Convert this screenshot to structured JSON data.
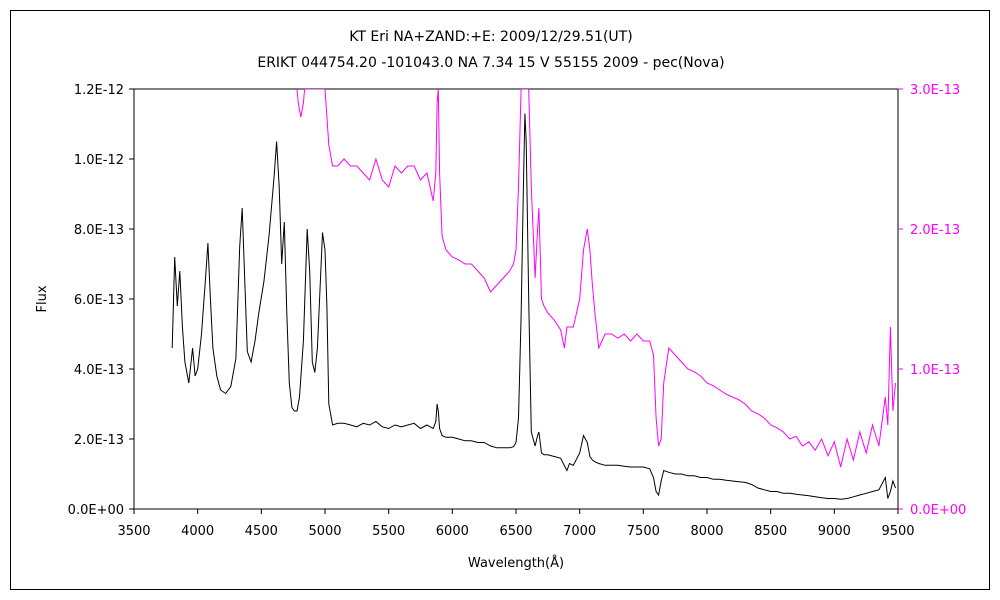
{
  "chart_data": {
    "type": "line",
    "title": "KT Eri    NA+ZAND:+E:    2009/12/29.51(UT)",
    "subtitle": "ERIKT 044754.20 -101043.0 NA 7.34 15 V 55155 2009 - pec(Nova)",
    "xlabel": "Wavelength(Å)",
    "ylabel": "Flux",
    "xlim": [
      3500,
      9500
    ],
    "ylim": [
      0,
      1.2e-12
    ],
    "y2lim": [
      0,
      3e-13
    ],
    "grid": false,
    "x_ticks": [
      "3500",
      "4000",
      "4500",
      "5000",
      "5500",
      "6000",
      "6500",
      "7000",
      "7500",
      "8000",
      "8500",
      "9000",
      "9500"
    ],
    "x_tick_values": [
      3500,
      4000,
      4500,
      5000,
      5500,
      6000,
      6500,
      7000,
      7500,
      8000,
      8500,
      9000,
      9500
    ],
    "y_ticks": [
      "0.0E+00",
      "2.0E-13",
      "4.0E-13",
      "6.0E-13",
      "8.0E-13",
      "1.0E-12",
      "1.2E-12"
    ],
    "y_tick_values": [
      0,
      2e-13,
      4e-13,
      6e-13,
      8e-13,
      1e-12,
      1.2e-12
    ],
    "y2_ticks": [
      "0.0E+00",
      "1.0E-13",
      "2.0E-13",
      "3.0E-13"
    ],
    "y2_tick_values": [
      0,
      1e-13,
      2e-13,
      3e-13
    ],
    "colors": {
      "primary": "#000000",
      "secondary": "#ff00ff"
    },
    "series": [
      {
        "axis": "left",
        "color": "#000000",
        "x": [
          3800,
          3820,
          3840,
          3860,
          3880,
          3900,
          3930,
          3960,
          3980,
          4000,
          4030,
          4060,
          4080,
          4100,
          4120,
          4150,
          4180,
          4220,
          4260,
          4300,
          4330,
          4350,
          4370,
          4390,
          4420,
          4450,
          4480,
          4520,
          4560,
          4600,
          4620,
          4640,
          4660,
          4680,
          4700,
          4720,
          4740,
          4760,
          4780,
          4800,
          4830,
          4860,
          4880,
          4900,
          4920,
          4940,
          4960,
          4980,
          5000,
          5015,
          5030,
          5060,
          5100,
          5150,
          5200,
          5250,
          5300,
          5350,
          5400,
          5450,
          5500,
          5550,
          5600,
          5650,
          5700,
          5750,
          5800,
          5850,
          5870,
          5880,
          5890,
          5900,
          5920,
          5950,
          6000,
          6050,
          6100,
          6150,
          6200,
          6250,
          6300,
          6350,
          6400,
          6450,
          6480,
          6500,
          6520,
          6540,
          6560,
          6570,
          6580,
          6600,
          6620,
          6650,
          6670,
          6680,
          6700,
          6720,
          6750,
          6800,
          6850,
          6900,
          6920,
          6950,
          7000,
          7030,
          7060,
          7080,
          7100,
          7120,
          7150,
          7200,
          7250,
          7300,
          7350,
          7400,
          7450,
          7500,
          7550,
          7580,
          7600,
          7620,
          7640,
          7660,
          7700,
          7750,
          7800,
          7850,
          7900,
          7950,
          8000,
          8050,
          8100,
          8150,
          8200,
          8250,
          8300,
          8350,
          8400,
          8450,
          8500,
          8550,
          8600,
          8650,
          8700,
          8750,
          8800,
          8850,
          8900,
          8950,
          9000,
          9050,
          9100,
          9150,
          9200,
          9250,
          9300,
          9350,
          9400,
          9420,
          9440,
          9460,
          9480
        ],
        "values": [
          4.6e-13,
          7.2e-13,
          5.8e-13,
          6.8e-13,
          5.2e-13,
          4.2e-13,
          3.6e-13,
          4.6e-13,
          3.8e-13,
          4e-13,
          5e-13,
          6.5e-13,
          7.6e-13,
          6e-13,
          4.6e-13,
          3.8e-13,
          3.4e-13,
          3.3e-13,
          3.5e-13,
          4.3e-13,
          7.5e-13,
          8.6e-13,
          6.5e-13,
          4.5e-13,
          4.2e-13,
          4.8e-13,
          5.6e-13,
          6.5e-13,
          7.8e-13,
          9.5e-13,
          1.05e-12,
          9.2e-13,
          7e-13,
          8.2e-13,
          5.6e-13,
          3.6e-13,
          2.9e-13,
          2.8e-13,
          2.8e-13,
          3.2e-13,
          4.8e-13,
          8e-13,
          6.8e-13,
          4.2e-13,
          3.9e-13,
          4.6e-13,
          6.2e-13,
          7.9e-13,
          7.4e-13,
          5.8e-13,
          3e-13,
          2.4e-13,
          2.45e-13,
          2.45e-13,
          2.4e-13,
          2.35e-13,
          2.45e-13,
          2.4e-13,
          2.5e-13,
          2.35e-13,
          2.3e-13,
          2.4e-13,
          2.35e-13,
          2.4e-13,
          2.45e-13,
          2.3e-13,
          2.4e-13,
          2.3e-13,
          2.5e-13,
          3e-13,
          2.8e-13,
          2.3e-13,
          2.1e-13,
          2.05e-13,
          2.05e-13,
          2e-13,
          1.95e-13,
          1.95e-13,
          1.9e-13,
          1.9e-13,
          1.8e-13,
          1.75e-13,
          1.75e-13,
          1.75e-13,
          1.78e-13,
          1.9e-13,
          2.6e-13,
          5.5e-13,
          9.5e-13,
          1.13e-12,
          1.05e-12,
          6e-13,
          2.2e-13,
          1.8e-13,
          2.1e-13,
          2.2e-13,
          1.6e-13,
          1.55e-13,
          1.55e-13,
          1.5e-13,
          1.45e-13,
          1.1e-13,
          1.3e-13,
          1.25e-13,
          1.6e-13,
          2.1e-13,
          1.9e-13,
          1.5e-13,
          1.4e-13,
          1.35e-13,
          1.3e-13,
          1.25e-13,
          1.25e-13,
          1.25e-13,
          1.22e-13,
          1.2e-13,
          1.2e-13,
          1.2e-13,
          1.15e-13,
          9e-14,
          5e-14,
          4e-14,
          8e-14,
          1.1e-13,
          1.05e-13,
          1e-13,
          1e-13,
          9.5e-14,
          9.5e-14,
          9e-14,
          9e-14,
          8.5e-14,
          8.5e-14,
          8.2e-14,
          8e-14,
          7.8e-14,
          7.6e-14,
          7e-14,
          6e-14,
          5.5e-14,
          5e-14,
          5e-14,
          4.5e-14,
          4.5e-14,
          4.2e-14,
          4e-14,
          3.8e-14,
          3.5e-14,
          3.2e-14,
          3e-14,
          3e-14,
          2.8e-14,
          3e-14,
          3.5e-14,
          4e-14,
          4.5e-14,
          5e-14,
          5.5e-14,
          9e-14,
          3e-14,
          5e-14,
          8e-14,
          6e-14
        ]
      },
      {
        "axis": "right",
        "color": "#ff00ff",
        "x": [
          4780,
          4790,
          4800,
          4810,
          4820,
          4830,
          4840,
          4850,
          4860,
          5000,
          5030,
          5060,
          5100,
          5150,
          5200,
          5250,
          5300,
          5350,
          5400,
          5450,
          5500,
          5550,
          5600,
          5650,
          5700,
          5750,
          5800,
          5850,
          5870,
          5880,
          5890,
          5900,
          5920,
          5950,
          6000,
          6050,
          6100,
          6150,
          6200,
          6250,
          6300,
          6350,
          6400,
          6450,
          6480,
          6500,
          6520,
          6540,
          6560,
          6600,
          6620,
          6650,
          6670,
          6680,
          6700,
          6720,
          6750,
          6800,
          6850,
          6880,
          6900,
          6950,
          7000,
          7030,
          7060,
          7080,
          7100,
          7120,
          7150,
          7200,
          7250,
          7300,
          7350,
          7400,
          7450,
          7500,
          7550,
          7580,
          7600,
          7620,
          7640,
          7660,
          7700,
          7750,
          7800,
          7850,
          7900,
          7950,
          8000,
          8050,
          8100,
          8150,
          8200,
          8250,
          8300,
          8350,
          8400,
          8450,
          8500,
          8550,
          8600,
          8650,
          8700,
          8750,
          8800,
          8850,
          8900,
          8950,
          9000,
          9050,
          9100,
          9150,
          9200,
          9250,
          9300,
          9350,
          9400,
          9420,
          9440,
          9460,
          9480
        ],
        "values": [
          3e-13,
          2.9e-13,
          2.85e-13,
          2.8e-13,
          2.85e-13,
          2.9e-13,
          3e-13,
          3e-13,
          3e-13,
          3e-13,
          2.6e-13,
          2.45e-13,
          2.45e-13,
          2.5e-13,
          2.45e-13,
          2.45e-13,
          2.4e-13,
          2.35e-13,
          2.5e-13,
          2.35e-13,
          2.3e-13,
          2.45e-13,
          2.4e-13,
          2.45e-13,
          2.45e-13,
          2.35e-13,
          2.4e-13,
          2.2e-13,
          2.4e-13,
          2.9e-13,
          3e-13,
          2.4e-13,
          1.95e-13,
          1.85e-13,
          1.8e-13,
          1.78e-13,
          1.75e-13,
          1.75e-13,
          1.7e-13,
          1.65e-13,
          1.55e-13,
          1.6e-13,
          1.65e-13,
          1.7e-13,
          1.75e-13,
          1.85e-13,
          2.3e-13,
          3e-13,
          3e-13,
          3e-13,
          2.3e-13,
          1.65e-13,
          2e-13,
          2.15e-13,
          1.5e-13,
          1.45e-13,
          1.4e-13,
          1.35e-13,
          1.28e-13,
          1.15e-13,
          1.3e-13,
          1.3e-13,
          1.5e-13,
          1.85e-13,
          2e-13,
          1.85e-13,
          1.6e-13,
          1.4e-13,
          1.15e-13,
          1.25e-13,
          1.25e-13,
          1.22e-13,
          1.25e-13,
          1.2e-13,
          1.25e-13,
          1.2e-13,
          1.2e-13,
          1.1e-13,
          6.5e-14,
          4.5e-14,
          5e-14,
          9e-14,
          1.15e-13,
          1.1e-13,
          1.05e-13,
          1e-13,
          9.8e-14,
          9.5e-14,
          9e-14,
          8.8e-14,
          8.5e-14,
          8.2e-14,
          8e-14,
          7.8e-14,
          7.5e-14,
          7e-14,
          6.8e-14,
          6.5e-14,
          6e-14,
          5.8e-14,
          5.5e-14,
          5e-14,
          5.2e-14,
          4.5e-14,
          4.8e-14,
          4.2e-14,
          5e-14,
          3.8e-14,
          4.8e-14,
          3e-14,
          5e-14,
          3.5e-14,
          5.5e-14,
          4e-14,
          6e-14,
          4.5e-14,
          8e-14,
          6e-14,
          1.3e-13,
          7e-14,
          9e-14
        ]
      }
    ]
  }
}
